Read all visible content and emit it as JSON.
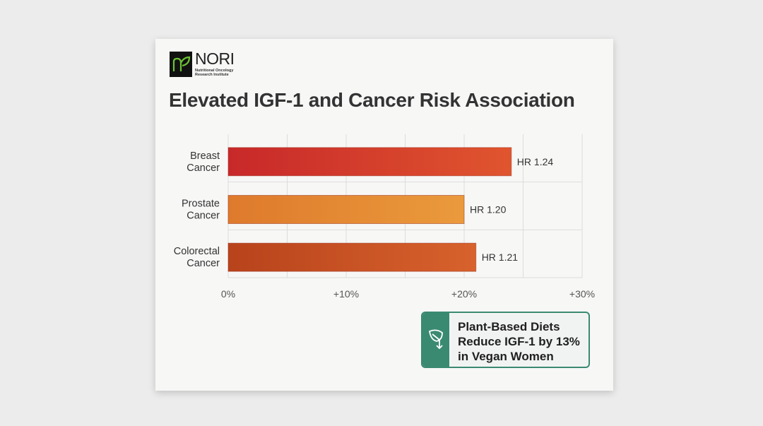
{
  "logo": {
    "name": "NORI",
    "subtitle_line1": "Nutritional Oncology",
    "subtitle_line2": "Research Institute"
  },
  "chart_data": {
    "type": "bar",
    "orientation": "horizontal",
    "title": "Elevated IGF-1 and Cancer Risk Association",
    "categories": [
      [
        "Breast",
        "Cancer"
      ],
      [
        "Prostate",
        "Cancer"
      ],
      [
        "Colorectal",
        "Cancer"
      ]
    ],
    "values": [
      24,
      20,
      21
    ],
    "data_labels": [
      "HR 1.24",
      "HR 1.20",
      "HR 1.21"
    ],
    "bar_colors": [
      [
        "#c8282a",
        "#e0552e"
      ],
      [
        "#de7a2c",
        "#ea9a3c"
      ],
      [
        "#b8431c",
        "#d8622c"
      ]
    ],
    "xlim": [
      0,
      30
    ],
    "xticks": [
      0,
      10,
      20,
      30
    ],
    "xtick_labels": [
      "0%",
      "+10%",
      "+20%",
      "+30%"
    ],
    "grid": true,
    "xlabel": "",
    "ylabel": ""
  },
  "callout": {
    "lines": [
      "Plant-Based Diets",
      "Reduce IGF-1 by 13%",
      "in Vegan Women"
    ],
    "icon": "leaf-down-arrow-icon",
    "color": "#3a8a72"
  }
}
